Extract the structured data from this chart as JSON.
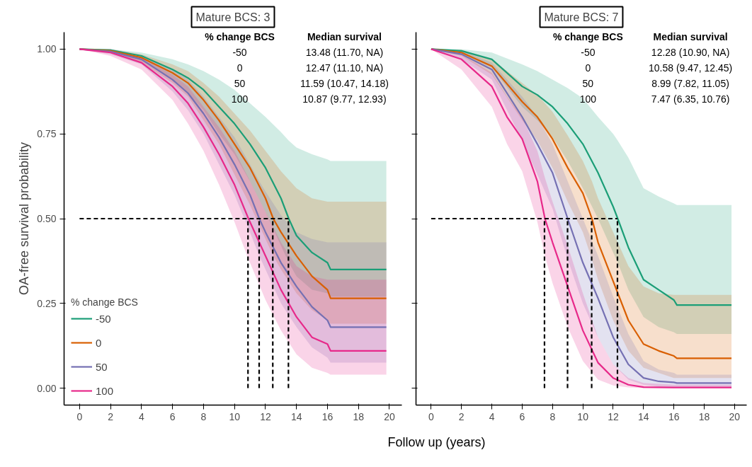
{
  "chart_data": [
    {
      "type": "line",
      "title": "Mature BCS: 3",
      "xlabel": "Follow up (years)",
      "ylabel": "OA-free survival probability",
      "legend_title": "% change BCS",
      "legend": "bottom left",
      "line_style": "solid",
      "xlim": [
        -1,
        20.8
      ],
      "ylim": [
        -0.05,
        1.05
      ],
      "xticks": [
        0,
        2,
        4,
        6,
        8,
        10,
        12,
        14,
        16,
        18,
        20
      ],
      "yticks": [
        {
          "value": 0,
          "label": "0.00"
        },
        {
          "value": 0.25,
          "label": "0.25"
        },
        {
          "value": 0.5,
          "label": "0.50"
        },
        {
          "value": 0.75,
          "label": "0.75"
        },
        {
          "value": 1,
          "label": "1.00"
        }
      ],
      "annotations": [
        "% change BCS",
        "Median survival",
        "-50",
        "13.48 (11.70, NA)",
        "0",
        "12.47 (11.10, NA)",
        "50",
        "11.59 (10.47, 14.18)",
        "100",
        "10.87 (9.77, 12.93)"
      ],
      "series": [
        {
          "name": "-50",
          "color": "#1b9e77",
          "x": [
            0,
            2,
            4,
            6,
            7,
            8,
            9,
            10,
            11,
            12,
            13,
            13.5,
            14,
            15,
            16,
            16.2,
            19.8
          ],
          "values": [
            1,
            0.997,
            0.98,
            0.94,
            0.915,
            0.88,
            0.83,
            0.78,
            0.72,
            0.65,
            0.56,
            0.5,
            0.45,
            0.4,
            0.37,
            0.35,
            0.35
          ],
          "upper": [
            1,
            1,
            0.99,
            0.97,
            0.955,
            0.935,
            0.91,
            0.88,
            0.84,
            0.8,
            0.755,
            0.73,
            0.71,
            0.69,
            0.675,
            0.67,
            0.67
          ],
          "lower": [
            1,
            0.99,
            0.965,
            0.91,
            0.87,
            0.82,
            0.75,
            0.69,
            0.61,
            0.52,
            0.42,
            0.37,
            0.33,
            0.29,
            0.28,
            0.27,
            0.27
          ]
        },
        {
          "name": "0",
          "color": "#d95f02",
          "x": [
            0,
            2,
            4,
            6,
            7,
            8,
            9,
            10,
            11,
            12,
            12.5,
            13,
            14,
            15,
            16,
            16.2,
            19.8
          ],
          "values": [
            1,
            0.995,
            0.975,
            0.93,
            0.9,
            0.85,
            0.79,
            0.72,
            0.65,
            0.56,
            0.5,
            0.46,
            0.39,
            0.33,
            0.29,
            0.265,
            0.265
          ],
          "upper": [
            1,
            1,
            0.985,
            0.955,
            0.935,
            0.9,
            0.86,
            0.81,
            0.76,
            0.7,
            0.67,
            0.64,
            0.59,
            0.56,
            0.55,
            0.55,
            0.55
          ],
          "lower": [
            1,
            0.99,
            0.96,
            0.9,
            0.86,
            0.79,
            0.72,
            0.63,
            0.54,
            0.44,
            0.39,
            0.35,
            0.28,
            0.23,
            0.2,
            0.19,
            0.19
          ]
        },
        {
          "name": "50",
          "color": "#7570b3",
          "x": [
            0,
            2,
            4,
            6,
            7,
            8,
            9,
            10,
            11,
            11.6,
            12,
            13,
            14,
            15,
            16,
            16.2,
            19.8
          ],
          "values": [
            1,
            0.993,
            0.97,
            0.91,
            0.87,
            0.81,
            0.74,
            0.66,
            0.57,
            0.5,
            0.46,
            0.37,
            0.3,
            0.24,
            0.2,
            0.18,
            0.18
          ],
          "upper": [
            1,
            1,
            0.98,
            0.94,
            0.91,
            0.86,
            0.8,
            0.74,
            0.66,
            0.61,
            0.58,
            0.51,
            0.46,
            0.44,
            0.43,
            0.43,
            0.43
          ],
          "lower": [
            1,
            0.985,
            0.955,
            0.875,
            0.82,
            0.75,
            0.66,
            0.57,
            0.46,
            0.39,
            0.35,
            0.25,
            0.18,
            0.12,
            0.09,
            0.075,
            0.075
          ]
        },
        {
          "name": "100",
          "color": "#e7298a",
          "x": [
            0,
            2,
            4,
            6,
            7,
            8,
            9,
            10,
            10.9,
            11,
            12,
            13,
            14,
            15,
            16,
            16.2,
            19.8
          ],
          "values": [
            1,
            0.99,
            0.96,
            0.89,
            0.84,
            0.77,
            0.69,
            0.6,
            0.5,
            0.49,
            0.39,
            0.29,
            0.21,
            0.15,
            0.13,
            0.11,
            0.11
          ],
          "upper": [
            1,
            1,
            0.975,
            0.925,
            0.89,
            0.83,
            0.77,
            0.7,
            0.62,
            0.61,
            0.52,
            0.43,
            0.36,
            0.33,
            0.32,
            0.32,
            0.32
          ],
          "lower": [
            1,
            0.98,
            0.94,
            0.85,
            0.78,
            0.7,
            0.6,
            0.49,
            0.38,
            0.37,
            0.26,
            0.17,
            0.1,
            0.06,
            0.045,
            0.04,
            0.04
          ]
        },
        {
          "color": "#000000",
          "line_style": "dashed",
          "x": [
            0,
            13.48
          ],
          "values": [
            0.5,
            0.5
          ]
        },
        {
          "color": "#000000",
          "line_style": "dashed",
          "x": [
            13.48,
            13.48
          ],
          "values": [
            0,
            0.5
          ]
        },
        {
          "color": "#000000",
          "line_style": "dashed",
          "x": [
            12.47,
            12.47
          ],
          "values": [
            0,
            0.5
          ]
        },
        {
          "color": "#000000",
          "line_style": "dashed",
          "x": [
            11.59,
            11.59
          ],
          "values": [
            0,
            0.5
          ]
        },
        {
          "color": "#000000",
          "line_style": "dashed",
          "x": [
            10.87,
            10.87
          ],
          "values": [
            0,
            0.5
          ]
        }
      ]
    },
    {
      "type": "line",
      "title": "Mature BCS: 7",
      "tick_labels": "x",
      "line_style": "solid",
      "xlim": [
        -1,
        20.8
      ],
      "ylim": [
        -0.05,
        1.05
      ],
      "xticks": [
        0,
        2,
        4,
        6,
        8,
        10,
        12,
        14,
        16,
        18,
        20
      ],
      "yticks": [
        {
          "value": 0,
          "label": null
        },
        {
          "value": 0.25,
          "label": null
        },
        {
          "value": 0.5,
          "label": null
        },
        {
          "value": 0.75,
          "label": null
        },
        {
          "value": 1,
          "label": null
        }
      ],
      "annotations": [
        "% change BCS",
        "Median survival",
        "-50",
        "12.28 (10.90, NA)",
        "0",
        "10.58 (9.47, 12.45)",
        "50",
        "8.99 (7.82, 11.05)",
        "100",
        "7.47 (6.35, 10.76)"
      ],
      "series": [
        {
          "color": "#1b9e77",
          "x": [
            0,
            2,
            4,
            6,
            7,
            8,
            9,
            10,
            11,
            12,
            12.3,
            13,
            14,
            15,
            16,
            16.2,
            19.8
          ],
          "values": [
            1,
            0.995,
            0.97,
            0.89,
            0.865,
            0.83,
            0.78,
            0.72,
            0.635,
            0.535,
            0.5,
            0.415,
            0.32,
            0.29,
            0.26,
            0.245,
            0.245
          ],
          "upper": [
            1,
            1,
            0.99,
            0.955,
            0.935,
            0.91,
            0.885,
            0.855,
            0.8,
            0.75,
            0.73,
            0.68,
            0.59,
            0.565,
            0.545,
            0.54,
            0.54
          ],
          "lower": [
            1,
            0.985,
            0.945,
            0.83,
            0.79,
            0.74,
            0.67,
            0.59,
            0.5,
            0.4,
            0.37,
            0.29,
            0.21,
            0.18,
            0.165,
            0.16,
            0.16
          ]
        },
        {
          "color": "#d95f02",
          "x": [
            0,
            2,
            4,
            6,
            7,
            8,
            9,
            10,
            10.6,
            11,
            12,
            13,
            14,
            15,
            16,
            16.2,
            19.8
          ],
          "values": [
            1,
            0.99,
            0.95,
            0.845,
            0.8,
            0.735,
            0.65,
            0.575,
            0.5,
            0.43,
            0.315,
            0.2,
            0.13,
            0.11,
            0.095,
            0.088,
            0.088
          ],
          "upper": [
            1,
            0.998,
            0.97,
            0.9,
            0.865,
            0.815,
            0.745,
            0.67,
            0.61,
            0.56,
            0.46,
            0.36,
            0.3,
            0.28,
            0.275,
            0.275,
            0.275
          ],
          "lower": [
            1,
            0.98,
            0.925,
            0.79,
            0.73,
            0.65,
            0.55,
            0.46,
            0.38,
            0.32,
            0.2,
            0.11,
            0.06,
            0.045,
            0.03,
            0.03,
            0.03
          ]
        },
        {
          "color": "#7570b3",
          "x": [
            0,
            2,
            4,
            6,
            7,
            8,
            9,
            10,
            11,
            12,
            13,
            14,
            15,
            16,
            16.2,
            19.8
          ],
          "values": [
            1,
            0.985,
            0.94,
            0.8,
            0.72,
            0.635,
            0.5,
            0.37,
            0.265,
            0.15,
            0.07,
            0.03,
            0.02,
            0.017,
            0.015,
            0.015
          ],
          "upper": [
            1,
            0.995,
            0.96,
            0.86,
            0.8,
            0.72,
            0.61,
            0.5,
            0.39,
            0.27,
            0.16,
            0.08,
            0.055,
            0.045,
            0.04,
            0.04
          ],
          "lower": [
            1,
            0.97,
            0.91,
            0.73,
            0.63,
            0.53,
            0.38,
            0.25,
            0.15,
            0.07,
            0.025,
            0.01,
            0.005,
            0.003,
            0.003,
            0.003
          ]
        },
        {
          "color": "#e7298a",
          "x": [
            0,
            2,
            4,
            5,
            6,
            7,
            7.5,
            8,
            9,
            10,
            11,
            12,
            13,
            14,
            16,
            19.8
          ],
          "values": [
            1,
            0.97,
            0.89,
            0.8,
            0.735,
            0.61,
            0.5,
            0.43,
            0.3,
            0.17,
            0.075,
            0.03,
            0.01,
            0.003,
            0.002,
            0.002
          ],
          "upper": [
            1,
            0.985,
            0.93,
            0.86,
            0.8,
            0.7,
            0.62,
            0.55,
            0.42,
            0.28,
            0.15,
            0.07,
            0.03,
            0.015,
            0.01,
            0.01
          ],
          "lower": [
            1,
            0.94,
            0.83,
            0.72,
            0.64,
            0.49,
            0.39,
            0.31,
            0.18,
            0.08,
            0.025,
            0.008,
            0.002,
            0,
            0,
            0
          ]
        },
        {
          "color": "#000000",
          "line_style": "dashed",
          "x": [
            0,
            12.28
          ],
          "values": [
            0.5,
            0.5
          ]
        },
        {
          "color": "#000000",
          "line_style": "dashed",
          "x": [
            12.28,
            12.28
          ],
          "values": [
            0,
            0.5
          ]
        },
        {
          "color": "#000000",
          "line_style": "dashed",
          "x": [
            10.58,
            10.58
          ],
          "values": [
            0,
            0.5
          ]
        },
        {
          "color": "#000000",
          "line_style": "dashed",
          "x": [
            8.99,
            8.99
          ],
          "values": [
            0,
            0.5
          ]
        },
        {
          "color": "#000000",
          "line_style": "dashed",
          "x": [
            7.47,
            7.47
          ],
          "values": [
            0,
            0.5
          ]
        }
      ]
    }
  ]
}
